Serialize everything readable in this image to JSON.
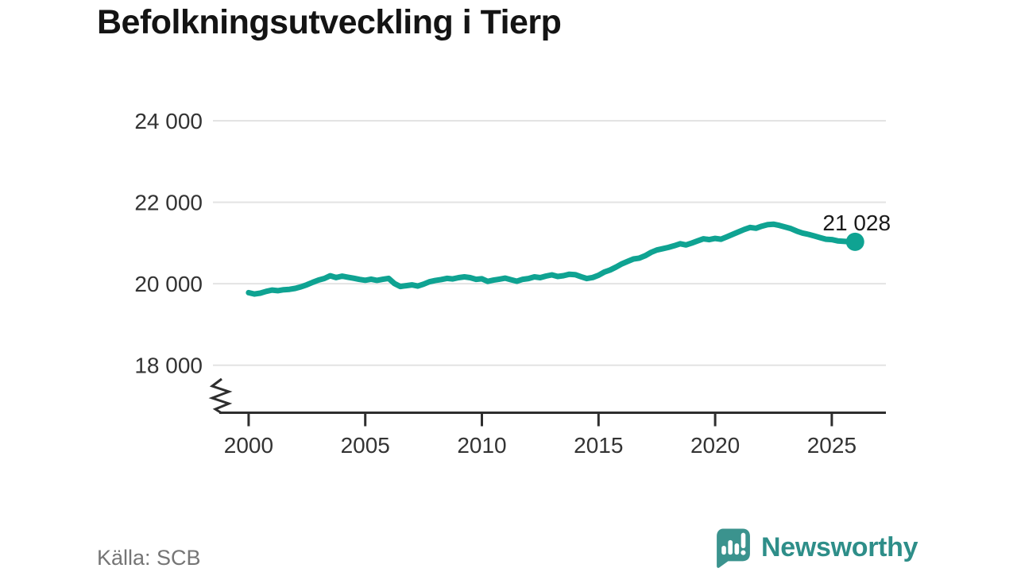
{
  "title": "Befolkningsutveckling i Tierp",
  "source": "Källa: SCB",
  "branding": {
    "name": "Newsworthy",
    "wordmark_color": "#2e8e89",
    "icon_color": "#3b938e"
  },
  "chart_data": {
    "type": "line",
    "title": "Befolkningsutveckling i Tierp",
    "grid": "horizontal-only",
    "axis_break_bottom": true,
    "line_color": "#0fa392",
    "axis_color": "#2e2e2e",
    "grid_color": "#e3e3e3",
    "tick_label_color": "#333333",
    "annotation_color": "#1a1a1a",
    "x_range": [
      1998.47,
      2027.32
    ],
    "x_ticks": {
      "values": [
        2000,
        2005,
        2010,
        2015,
        2020,
        2025
      ],
      "labels": [
        "2000",
        "2005",
        "2010",
        "2015",
        "2020",
        "2025"
      ]
    },
    "y_ticks": {
      "values": [
        18000,
        20000,
        22000,
        24000
      ],
      "labels": [
        "18 000",
        "20 000",
        "22 000",
        "24 000"
      ]
    },
    "end_annotation": {
      "label": "21 028",
      "x": 2026.0,
      "value": 21028
    },
    "series": [
      {
        "points": [
          [
            2000,
            19780
          ],
          [
            2000.25,
            19748
          ],
          [
            2000.5,
            19768
          ],
          [
            2000.75,
            19812
          ],
          [
            2001,
            19845
          ],
          [
            2001.25,
            19830
          ],
          [
            2001.5,
            19852
          ],
          [
            2001.75,
            19862
          ],
          [
            2002,
            19885
          ],
          [
            2002.25,
            19925
          ],
          [
            2002.5,
            19975
          ],
          [
            2002.75,
            20035
          ],
          [
            2003,
            20090
          ],
          [
            2003.25,
            20130
          ],
          [
            2003.5,
            20195
          ],
          [
            2003.75,
            20150
          ],
          [
            2004,
            20185
          ],
          [
            2004.25,
            20160
          ],
          [
            2004.5,
            20135
          ],
          [
            2004.75,
            20105
          ],
          [
            2005,
            20085
          ],
          [
            2005.25,
            20112
          ],
          [
            2005.5,
            20082
          ],
          [
            2005.75,
            20108
          ],
          [
            2006,
            20132
          ],
          [
            2006.25,
            20005
          ],
          [
            2006.5,
            19932
          ],
          [
            2006.75,
            19952
          ],
          [
            2007,
            19972
          ],
          [
            2007.25,
            19942
          ],
          [
            2007.5,
            19988
          ],
          [
            2007.75,
            20048
          ],
          [
            2008,
            20078
          ],
          [
            2008.25,
            20102
          ],
          [
            2008.5,
            20132
          ],
          [
            2008.75,
            20118
          ],
          [
            2009,
            20148
          ],
          [
            2009.25,
            20168
          ],
          [
            2009.5,
            20148
          ],
          [
            2009.75,
            20108
          ],
          [
            2010,
            20122
          ],
          [
            2010.25,
            20058
          ],
          [
            2010.5,
            20088
          ],
          [
            2010.75,
            20112
          ],
          [
            2011,
            20138
          ],
          [
            2011.25,
            20098
          ],
          [
            2011.5,
            20062
          ],
          [
            2011.75,
            20108
          ],
          [
            2012,
            20128
          ],
          [
            2012.25,
            20168
          ],
          [
            2012.5,
            20148
          ],
          [
            2012.75,
            20188
          ],
          [
            2013,
            20218
          ],
          [
            2013.25,
            20178
          ],
          [
            2013.5,
            20198
          ],
          [
            2013.75,
            20232
          ],
          [
            2014,
            20222
          ],
          [
            2014.25,
            20172
          ],
          [
            2014.5,
            20128
          ],
          [
            2014.75,
            20152
          ],
          [
            2015,
            20208
          ],
          [
            2015.25,
            20288
          ],
          [
            2015.5,
            20338
          ],
          [
            2015.75,
            20408
          ],
          [
            2016,
            20488
          ],
          [
            2016.25,
            20548
          ],
          [
            2016.5,
            20608
          ],
          [
            2016.75,
            20628
          ],
          [
            2017,
            20688
          ],
          [
            2017.25,
            20768
          ],
          [
            2017.5,
            20828
          ],
          [
            2017.75,
            20858
          ],
          [
            2018,
            20892
          ],
          [
            2018.25,
            20932
          ],
          [
            2018.5,
            20982
          ],
          [
            2018.75,
            20952
          ],
          [
            2019,
            21000
          ],
          [
            2019.25,
            21052
          ],
          [
            2019.5,
            21102
          ],
          [
            2019.75,
            21082
          ],
          [
            2020,
            21112
          ],
          [
            2020.25,
            21092
          ],
          [
            2020.5,
            21152
          ],
          [
            2020.75,
            21212
          ],
          [
            2021,
            21272
          ],
          [
            2021.25,
            21332
          ],
          [
            2021.5,
            21382
          ],
          [
            2021.75,
            21362
          ],
          [
            2022,
            21412
          ],
          [
            2022.25,
            21452
          ],
          [
            2022.5,
            21462
          ],
          [
            2022.75,
            21432
          ],
          [
            2023,
            21392
          ],
          [
            2023.25,
            21352
          ],
          [
            2023.5,
            21292
          ],
          [
            2023.75,
            21242
          ],
          [
            2024,
            21212
          ],
          [
            2024.25,
            21172
          ],
          [
            2024.5,
            21132
          ],
          [
            2024.75,
            21092
          ],
          [
            2025,
            21082
          ],
          [
            2025.25,
            21052
          ],
          [
            2025.5,
            21042
          ],
          [
            2025.75,
            21032
          ],
          [
            2026,
            21028
          ]
        ]
      }
    ]
  }
}
